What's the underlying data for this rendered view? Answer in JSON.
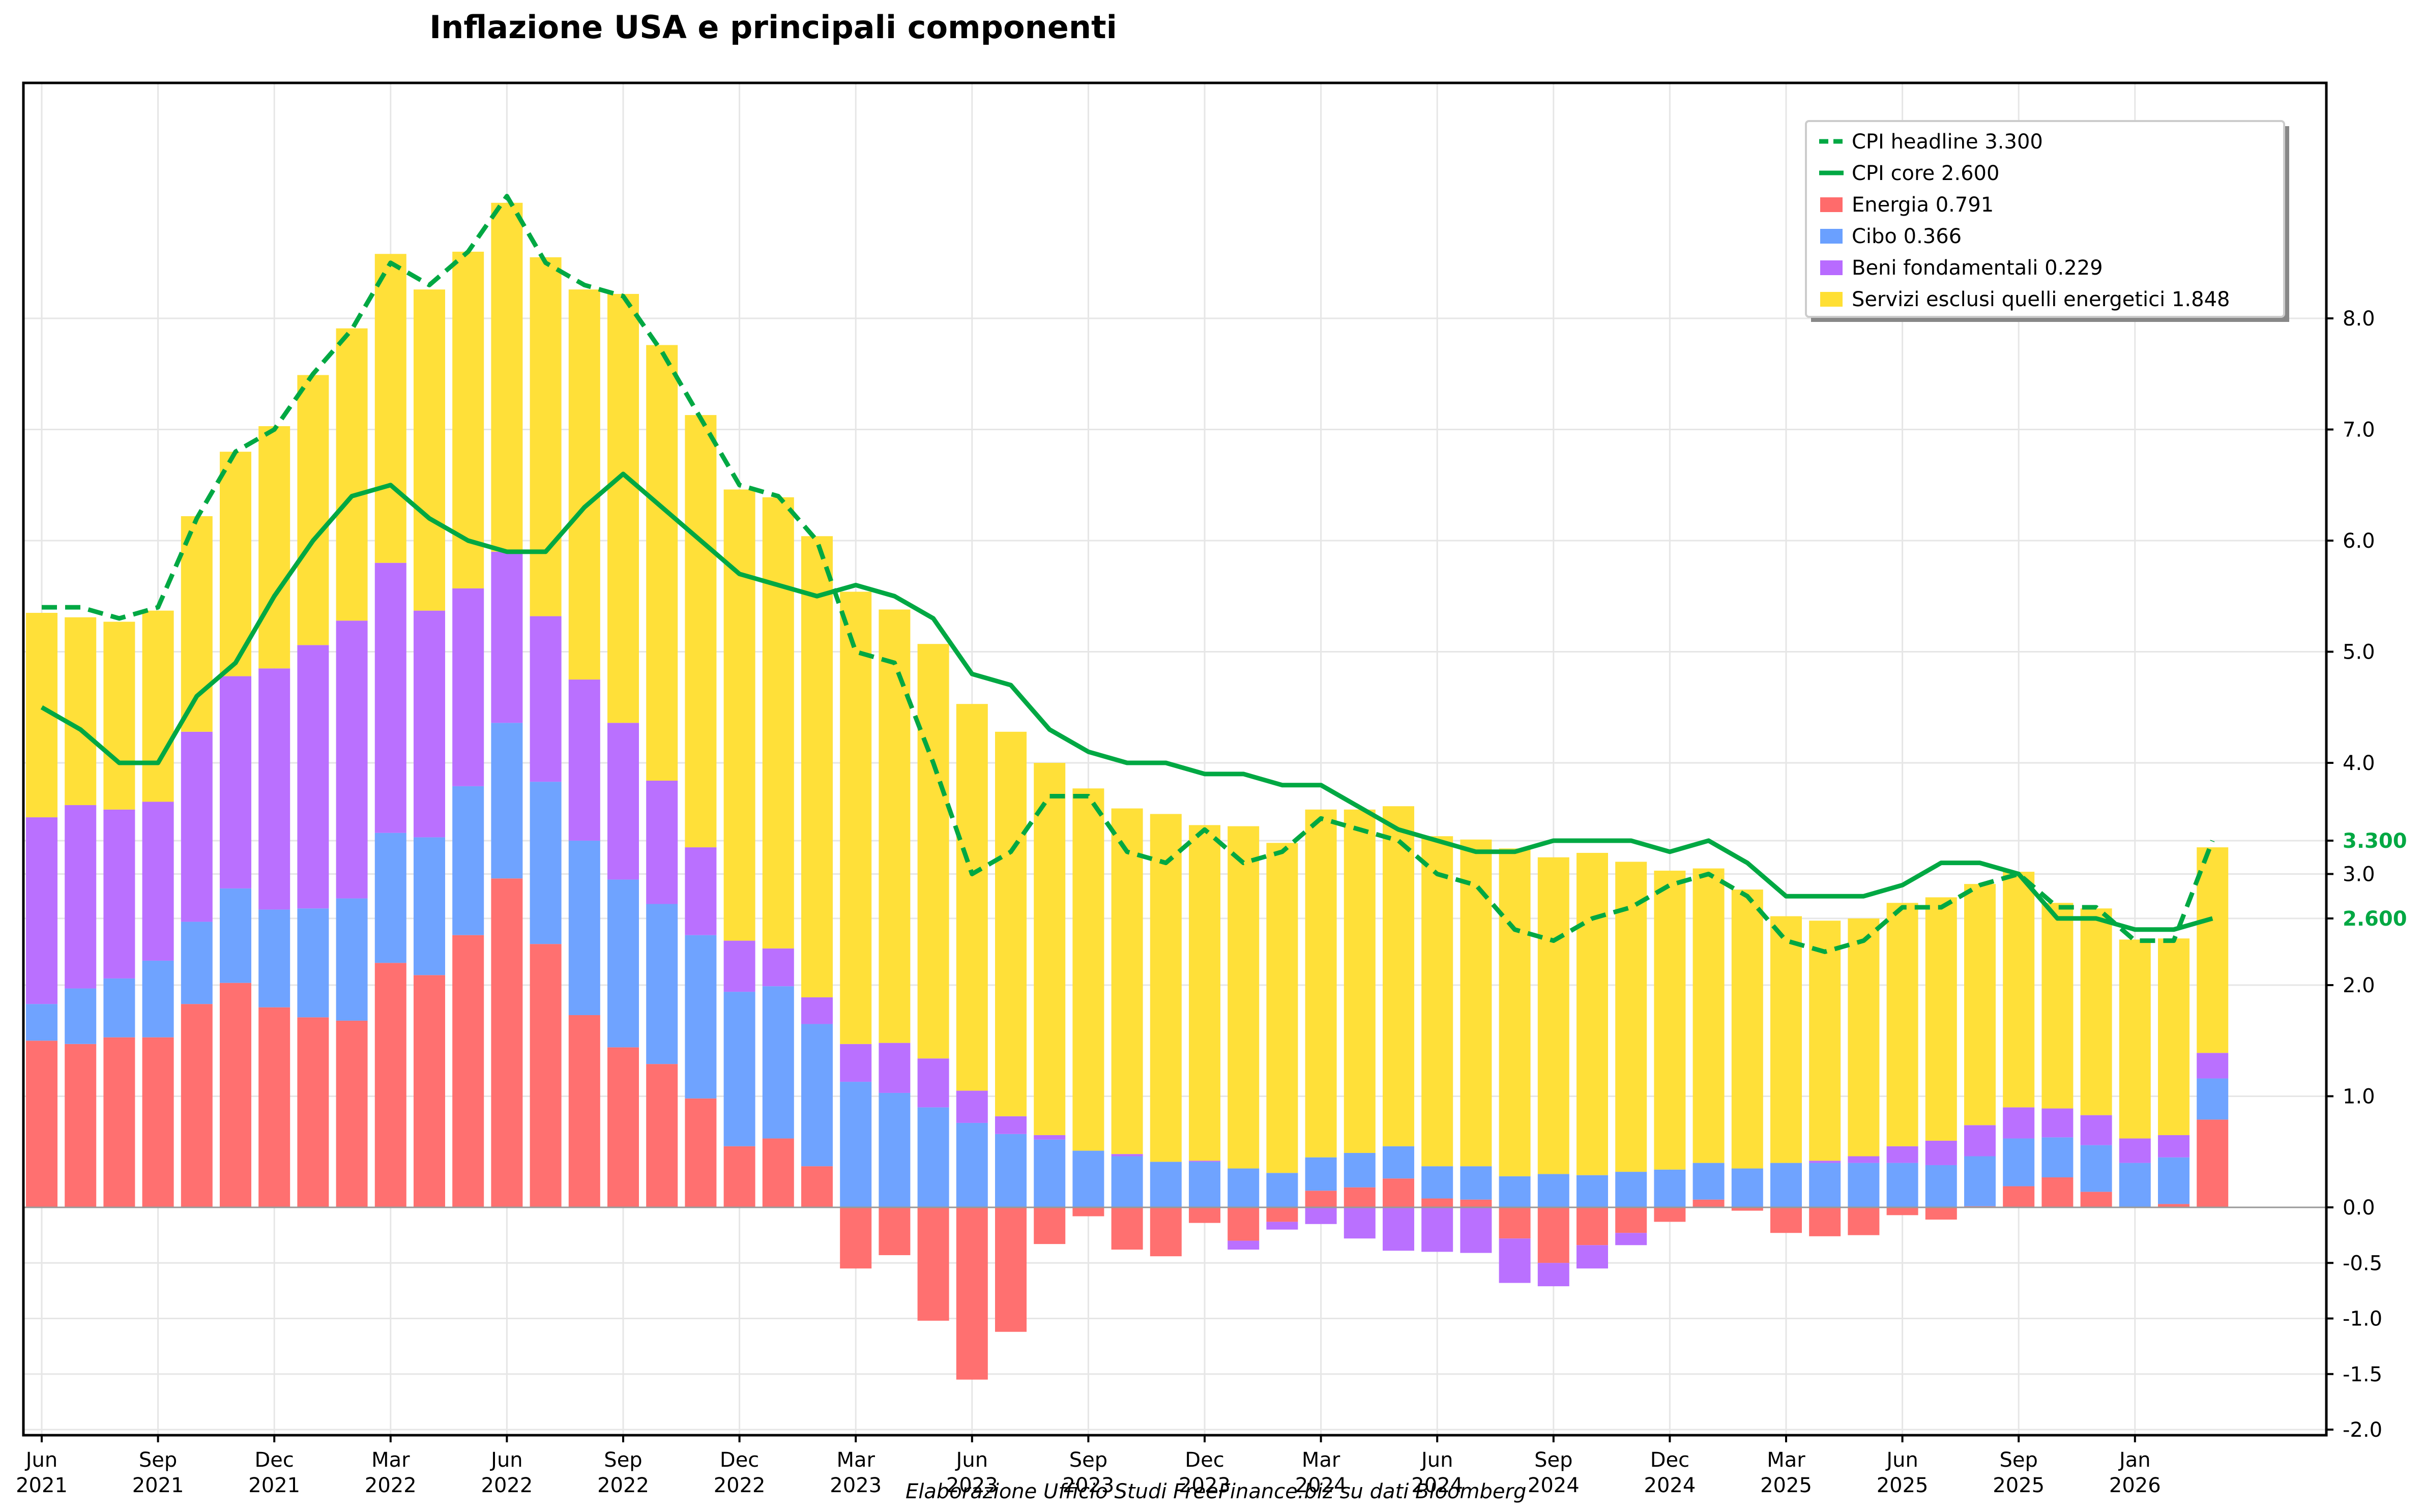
{
  "chart_data": {
    "type": "bar",
    "title": "Inflazione USA e principali componenti",
    "footer": "Elaborazione Ufficio Studi FreeFinance.biz su dati Bloomberg",
    "xlabel": "",
    "ylabel": "",
    "ylim": [
      -2.0,
      10.1
    ],
    "grid": true,
    "legend_position": "top-right",
    "y_axis_side": "right",
    "yticks": [
      {
        "value": -2.0,
        "label": "-2.0"
      },
      {
        "value": -1.5,
        "label": "-1.5"
      },
      {
        "value": -1.0,
        "label": "-1.0"
      },
      {
        "value": -0.5,
        "label": "-0.5"
      },
      {
        "value": 0.0,
        "label": "0.0"
      },
      {
        "value": 1.0,
        "label": "1.0"
      },
      {
        "value": 2.0,
        "label": "2.0"
      },
      {
        "value": 3.0,
        "label": "3.0"
      },
      {
        "value": 4.0,
        "label": "4.0"
      },
      {
        "value": 5.0,
        "label": "5.0"
      },
      {
        "value": 6.0,
        "label": "6.0"
      },
      {
        "value": 7.0,
        "label": "7.0"
      },
      {
        "value": 8.0,
        "label": "8.0"
      }
    ],
    "highlight_yticks": [
      {
        "value": 3.3,
        "label": "3.300",
        "color": "#00a843"
      },
      {
        "value": 2.6,
        "label": "2.600",
        "color": "#00a843"
      }
    ],
    "xticks": [
      {
        "index": 0,
        "month": "Jun",
        "year": "2021"
      },
      {
        "index": 3,
        "month": "Sep",
        "year": "2021"
      },
      {
        "index": 6,
        "month": "Dec",
        "year": "2021"
      },
      {
        "index": 9,
        "month": "Mar",
        "year": "2022"
      },
      {
        "index": 12,
        "month": "Jun",
        "year": "2022"
      },
      {
        "index": 15,
        "month": "Sep",
        "year": "2022"
      },
      {
        "index": 18,
        "month": "Dec",
        "year": "2022"
      },
      {
        "index": 21,
        "month": "Mar",
        "year": "2023"
      },
      {
        "index": 24,
        "month": "Jun",
        "year": "2023"
      },
      {
        "index": 27,
        "month": "Sep",
        "year": "2023"
      },
      {
        "index": 30,
        "month": "Dec",
        "year": "2023"
      },
      {
        "index": 33,
        "month": "Mar",
        "year": "2024"
      },
      {
        "index": 36,
        "month": "Jun",
        "year": "2024"
      },
      {
        "index": 39,
        "month": "Sep",
        "year": "2024"
      },
      {
        "index": 42,
        "month": "Dec",
        "year": "2024"
      },
      {
        "index": 45,
        "month": "Mar",
        "year": "2025"
      },
      {
        "index": 48,
        "month": "Jun",
        "year": "2025"
      },
      {
        "index": 51,
        "month": "Sep",
        "year": "2025"
      },
      {
        "index": 54,
        "month": "Jan",
        "year": "2026"
      }
    ],
    "categories": [
      "Jun 2021",
      "Jul 2021",
      "Aug 2021",
      "Sep 2021",
      "Oct 2021",
      "Nov 2021",
      "Dec 2021",
      "Jan 2022",
      "Feb 2022",
      "Mar 2022",
      "Apr 2022",
      "May 2022",
      "Jun 2022",
      "Jul 2022",
      "Aug 2022",
      "Sep 2022",
      "Oct 2022",
      "Nov 2022",
      "Dec 2022",
      "Jan 2023",
      "Feb 2023",
      "Mar 2023",
      "Apr 2023",
      "May 2023",
      "Jun 2023",
      "Jul 2023",
      "Aug 2023",
      "Sep 2023",
      "Oct 2023",
      "Nov 2023",
      "Dec 2023",
      "Jan 2024",
      "Feb 2024",
      "Mar 2024",
      "Apr 2024",
      "May 2024",
      "Jun 2024",
      "Jul 2024",
      "Aug 2024",
      "Sep 2024",
      "Oct 2024",
      "Nov 2024",
      "Dec 2024",
      "Jan 2025",
      "Feb 2025",
      "Mar 2025",
      "Apr 2025",
      "May 2025",
      "Jun 2025",
      "Jul 2025",
      "Aug 2025",
      "Sep 2025",
      "Nov 2025",
      "Dec 2025",
      "Jan 2026",
      "Feb 2026",
      "Mar 2026"
    ],
    "series": [
      {
        "name": "Energia",
        "legend_label": "Energia 0.791",
        "kind": "stacked-bar",
        "color": "#ff6b6b",
        "values": [
          1.5,
          1.47,
          1.53,
          1.53,
          1.83,
          2.02,
          1.8,
          1.71,
          1.68,
          2.2,
          2.09,
          2.45,
          2.96,
          2.37,
          1.73,
          1.44,
          1.29,
          0.98,
          0.55,
          0.62,
          0.37,
          -0.55,
          -0.43,
          -1.02,
          -1.55,
          -1.12,
          -0.33,
          -0.08,
          -0.38,
          -0.44,
          -0.14,
          -0.3,
          -0.13,
          0.15,
          0.18,
          0.26,
          0.08,
          0.07,
          -0.28,
          -0.5,
          -0.34,
          -0.23,
          -0.13,
          0.07,
          -0.03,
          -0.23,
          -0.26,
          -0.25,
          -0.07,
          -0.11,
          0.01,
          0.19,
          0.27,
          0.14,
          0.0,
          0.03,
          0.79
        ]
      },
      {
        "name": "Cibo",
        "legend_label": "Cibo 0.366",
        "kind": "stacked-bar",
        "color": "#6aa0ff",
        "values": [
          0.33,
          0.5,
          0.53,
          0.69,
          0.74,
          0.85,
          0.88,
          0.98,
          1.1,
          1.17,
          1.24,
          1.34,
          1.4,
          1.46,
          1.57,
          1.51,
          1.44,
          1.47,
          1.39,
          1.37,
          1.28,
          1.13,
          1.03,
          0.9,
          0.76,
          0.66,
          0.61,
          0.51,
          0.46,
          0.41,
          0.41,
          0.35,
          0.31,
          0.3,
          0.31,
          0.29,
          0.29,
          0.3,
          0.28,
          0.3,
          0.29,
          0.32,
          0.34,
          0.33,
          0.35,
          0.4,
          0.4,
          0.4,
          0.4,
          0.38,
          0.45,
          0.43,
          0.36,
          0.42,
          0.4,
          0.42,
          0.37
        ]
      },
      {
        "name": "Beni fondamentali",
        "legend_label": "Beni fondamentali 0.229",
        "kind": "stacked-bar",
        "color": "#b86bff",
        "values": [
          1.68,
          1.65,
          1.52,
          1.43,
          1.71,
          1.91,
          2.17,
          2.37,
          2.5,
          2.43,
          2.04,
          1.78,
          1.54,
          1.49,
          1.45,
          1.41,
          1.11,
          0.79,
          0.46,
          0.34,
          0.24,
          0.34,
          0.45,
          0.44,
          0.29,
          0.16,
          0.04,
          0.0,
          0.02,
          0.0,
          0.01,
          -0.08,
          -0.07,
          -0.15,
          -0.28,
          -0.39,
          -0.4,
          -0.41,
          -0.4,
          -0.21,
          -0.21,
          -0.11,
          0.0,
          0.0,
          0.0,
          0.0,
          0.02,
          0.06,
          0.15,
          0.22,
          0.28,
          0.28,
          0.26,
          0.27,
          0.22,
          0.2,
          0.23
        ]
      },
      {
        "name": "Servizi esclusi quelli energetici",
        "legend_label": "Servizi esclusi quelli energetici 1.848",
        "kind": "stacked-bar",
        "color": "#ffdf33",
        "values": [
          1.84,
          1.69,
          1.69,
          1.72,
          1.94,
          2.02,
          2.18,
          2.43,
          2.63,
          2.78,
          2.89,
          3.03,
          3.14,
          3.23,
          3.51,
          3.86,
          3.92,
          3.89,
          4.06,
          4.06,
          4.15,
          4.07,
          3.9,
          3.73,
          3.48,
          3.46,
          3.35,
          3.26,
          3.11,
          3.13,
          3.02,
          3.08,
          2.97,
          3.13,
          3.09,
          3.06,
          2.97,
          2.94,
          2.95,
          2.85,
          2.9,
          2.79,
          2.69,
          2.65,
          2.51,
          2.22,
          2.16,
          2.14,
          2.19,
          2.19,
          2.17,
          2.12,
          1.85,
          1.86,
          1.79,
          1.77,
          1.85
        ]
      },
      {
        "name": "CPI headline",
        "legend_label": "CPI headline 3.300",
        "kind": "dashed-line",
        "color": "#00a843",
        "values": [
          5.4,
          5.4,
          5.3,
          5.4,
          6.2,
          6.8,
          7.0,
          7.5,
          7.9,
          8.5,
          8.3,
          8.6,
          9.1,
          8.5,
          8.3,
          8.2,
          7.7,
          7.1,
          6.5,
          6.4,
          6.0,
          5.0,
          4.9,
          4.0,
          3.0,
          3.2,
          3.7,
          3.7,
          3.2,
          3.1,
          3.4,
          3.1,
          3.2,
          3.5,
          3.4,
          3.3,
          3.0,
          2.9,
          2.5,
          2.4,
          2.6,
          2.7,
          2.9,
          3.0,
          2.8,
          2.4,
          2.3,
          2.4,
          2.7,
          2.7,
          2.9,
          3.0,
          2.7,
          2.7,
          2.4,
          2.4,
          3.3
        ]
      },
      {
        "name": "CPI core",
        "legend_label": "CPI core 2.600",
        "kind": "line",
        "color": "#00a843",
        "values": [
          4.5,
          4.3,
          4.0,
          4.0,
          4.6,
          4.9,
          5.5,
          6.0,
          6.4,
          6.5,
          6.2,
          6.0,
          5.9,
          5.9,
          6.3,
          6.6,
          6.3,
          6.0,
          5.7,
          5.6,
          5.5,
          5.6,
          5.5,
          5.3,
          4.8,
          4.7,
          4.3,
          4.1,
          4.0,
          4.0,
          3.9,
          3.9,
          3.8,
          3.8,
          3.6,
          3.4,
          3.3,
          3.2,
          3.2,
          3.3,
          3.3,
          3.3,
          3.2,
          3.3,
          3.1,
          2.8,
          2.8,
          2.8,
          2.9,
          3.1,
          3.1,
          3.0,
          2.6,
          2.6,
          2.5,
          2.5,
          2.6
        ]
      }
    ]
  }
}
